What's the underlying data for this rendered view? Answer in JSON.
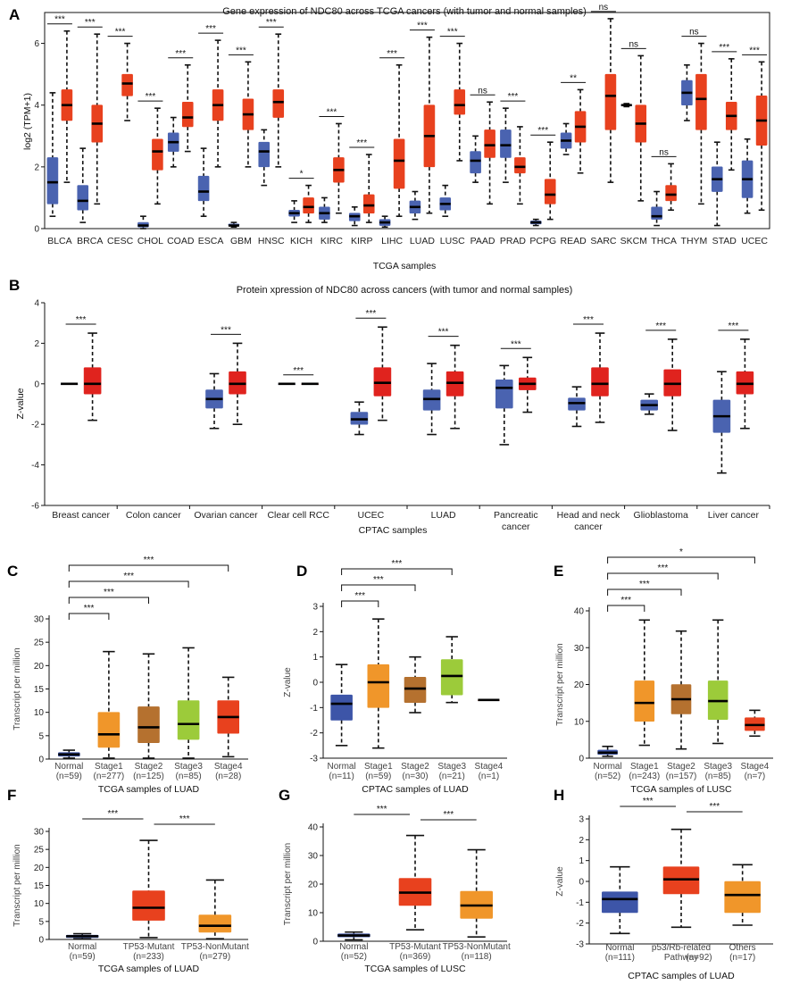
{
  "chart_data": [
    {
      "panel": "A",
      "type": "box",
      "title": "Gene expression of NDC80 across TCGA cancers (with tumor and normal samples)",
      "xlabel": "TCGA samples",
      "ylabel": "log2 (TPM+1)",
      "ylim": [
        0,
        7
      ],
      "yticks": [
        0,
        2,
        4,
        6
      ],
      "colors": {
        "normal": "#4a63b0",
        "tumor": "#e8411e"
      },
      "categories": [
        "BLCA",
        "BRCA",
        "CESC",
        "CHOL",
        "COAD",
        "ESCA",
        "GBM",
        "HNSC",
        "KICH",
        "KIRC",
        "KIRP",
        "LIHC",
        "LUAD",
        "LUSC",
        "PAAD",
        "PRAD",
        "PCPG",
        "READ",
        "SARC",
        "SKCM",
        "THCA",
        "THYM",
        "STAD",
        "UCEC"
      ],
      "significance": [
        "***",
        "***",
        "***",
        "***",
        "***",
        "***",
        "***",
        "***",
        "*",
        "***",
        "***",
        "***",
        "***",
        "***",
        "ns",
        "***",
        "***",
        "**",
        "ns",
        "ns",
        "ns",
        "ns",
        "***",
        "***"
      ],
      "normal": [
        [
          0.4,
          0.8,
          1.5,
          2.3,
          4.4
        ],
        [
          0.2,
          0.6,
          0.9,
          1.4,
          2.6
        ],
        null,
        [
          0.0,
          0.05,
          0.1,
          0.2,
          0.4
        ],
        [
          2.0,
          2.5,
          2.8,
          3.1,
          3.6
        ],
        [
          0.4,
          0.9,
          1.2,
          1.7,
          2.6
        ],
        [
          0.05,
          0.1,
          0.1,
          0.15,
          0.2
        ],
        [
          1.4,
          2.0,
          2.5,
          2.8,
          3.2
        ],
        [
          0.2,
          0.4,
          0.5,
          0.6,
          0.9
        ],
        [
          0.2,
          0.3,
          0.5,
          0.7,
          1.0
        ],
        [
          0.1,
          0.25,
          0.4,
          0.5,
          0.7
        ],
        [
          0.05,
          0.1,
          0.2,
          0.3,
          0.4
        ],
        [
          0.3,
          0.5,
          0.7,
          0.9,
          1.2
        ],
        [
          0.4,
          0.6,
          0.8,
          1.0,
          1.4
        ],
        [
          1.5,
          1.8,
          2.2,
          2.5,
          3.0
        ],
        [
          1.5,
          2.3,
          2.7,
          3.2,
          3.9
        ],
        [
          0.1,
          0.15,
          0.2,
          0.25,
          0.3
        ],
        [
          2.4,
          2.6,
          2.85,
          3.1,
          3.4
        ],
        null,
        [
          3.95,
          3.98,
          4.0,
          4.02,
          4.05
        ],
        [
          0.1,
          0.3,
          0.4,
          0.7,
          1.2
        ],
        [
          3.5,
          4.0,
          4.4,
          4.8,
          5.3
        ],
        [
          0.1,
          1.2,
          1.6,
          2.0,
          2.8
        ],
        [
          0.5,
          1.0,
          1.6,
          2.2,
          2.9
        ]
      ],
      "tumor": [
        [
          1.5,
          3.5,
          4.0,
          4.5,
          6.4
        ],
        [
          0.8,
          2.8,
          3.4,
          4.0,
          6.3
        ],
        [
          3.5,
          4.3,
          4.7,
          5.0,
          6.0
        ],
        [
          0.8,
          1.9,
          2.5,
          2.9,
          3.9
        ],
        [
          2.5,
          3.3,
          3.6,
          4.1,
          5.3
        ],
        [
          2.0,
          3.5,
          4.0,
          4.5,
          6.1
        ],
        [
          2.0,
          3.2,
          3.7,
          4.2,
          5.4
        ],
        [
          2.0,
          3.6,
          4.1,
          4.5,
          6.3
        ],
        [
          0.2,
          0.5,
          0.7,
          1.0,
          1.4
        ],
        [
          0.5,
          1.5,
          1.9,
          2.3,
          3.4
        ],
        [
          0.2,
          0.5,
          0.75,
          1.1,
          2.4
        ],
        [
          0.4,
          1.3,
          2.2,
          2.9,
          5.3
        ],
        [
          0.5,
          2.0,
          3.0,
          4.0,
          6.2
        ],
        [
          2.2,
          3.7,
          4.0,
          4.5,
          6.0
        ],
        [
          0.8,
          2.3,
          2.7,
          3.2,
          4.1
        ],
        [
          0.8,
          1.8,
          2.0,
          2.3,
          3.3
        ],
        [
          0.3,
          0.8,
          1.1,
          1.6,
          2.8
        ],
        [
          1.8,
          2.8,
          3.3,
          3.8,
          4.5
        ],
        [
          1.5,
          3.2,
          4.3,
          5.0,
          6.8
        ],
        [
          0.9,
          2.8,
          3.4,
          4.0,
          5.6
        ],
        [
          0.6,
          0.9,
          1.1,
          1.4,
          2.1
        ],
        [
          0.8,
          3.2,
          4.2,
          5.0,
          6.0
        ],
        [
          1.9,
          3.2,
          3.65,
          4.1,
          5.5
        ],
        [
          0.6,
          2.7,
          3.5,
          4.3,
          5.4
        ]
      ]
    },
    {
      "panel": "B",
      "type": "box",
      "title": "Protein xpression of NDC80 across cancers (with tumor and normal samples)",
      "xlabel": "CPTAC samples",
      "ylabel": "Z-value",
      "ylim": [
        -6,
        4
      ],
      "yticks": [
        -6,
        -4,
        -2,
        0,
        2,
        4
      ],
      "colors": {
        "normal": "#4a63b0",
        "tumor": "#e0231e"
      },
      "categories": [
        "Breast cancer",
        "Colon cancer",
        "Ovarian cancer",
        "Clear cell RCC",
        "UCEC",
        "LUAD",
        "Pancreatic cancer",
        "Head and neck cancer",
        "Glioblastoma",
        "Liver cancer"
      ],
      "category_lines": [
        [
          "Breast cancer"
        ],
        [
          "Colon cancer"
        ],
        [
          "Ovarian cancer"
        ],
        [
          "Clear cell RCC"
        ],
        [
          "UCEC"
        ],
        [
          "LUAD"
        ],
        [
          "Pancreatic",
          "cancer"
        ],
        [
          "Head and neck",
          "cancer"
        ],
        [
          "Glioblastoma"
        ],
        [
          "Liver cancer"
        ]
      ],
      "significance": [
        "***",
        "",
        "***",
        "***",
        "***",
        "***",
        "***",
        "***",
        "***",
        "***"
      ],
      "normal": [
        [
          0,
          0,
          0,
          0,
          0
        ],
        null,
        [
          -2.2,
          -1.2,
          -0.75,
          -0.3,
          0.5
        ],
        [
          0,
          0,
          0,
          0,
          0
        ],
        [
          -2.5,
          -2.0,
          -1.75,
          -1.4,
          -0.9
        ],
        [
          -2.5,
          -1.3,
          -0.75,
          -0.3,
          1.0
        ],
        [
          -3.0,
          -1.2,
          -0.2,
          0.2,
          0.9
        ],
        [
          -2.1,
          -1.3,
          -0.95,
          -0.7,
          -0.15
        ],
        [
          -1.5,
          -1.3,
          -1.05,
          -0.8,
          -0.5
        ],
        [
          -4.4,
          -2.4,
          -1.6,
          -0.8,
          0.6
        ]
      ],
      "tumor": [
        [
          -1.8,
          -0.5,
          0,
          0.8,
          2.5
        ],
        null,
        [
          -2.0,
          -0.5,
          0,
          0.6,
          2.0
        ],
        [
          0,
          0,
          0,
          0,
          0
        ],
        [
          -1.8,
          -0.6,
          0.05,
          0.8,
          2.8
        ],
        [
          -2.2,
          -0.6,
          0.05,
          0.6,
          1.9
        ],
        [
          -1.4,
          -0.3,
          0,
          0.3,
          1.3
        ],
        [
          -1.9,
          -0.6,
          0,
          0.8,
          2.5
        ],
        [
          -2.3,
          -0.6,
          0,
          0.7,
          2.2
        ],
        [
          -2.2,
          -0.5,
          0,
          0.6,
          2.2
        ]
      ]
    },
    {
      "panel": "C",
      "type": "box",
      "xlabel": "TCGA samples of LUAD",
      "ylabel": "Transcript per million",
      "ylim": [
        0,
        30
      ],
      "yticks": [
        0,
        5,
        10,
        15,
        20,
        25,
        30
      ],
      "categories": [
        "Normal",
        "Stage1",
        "Stage2",
        "Stage3",
        "Stage4"
      ],
      "counts": [
        "(n=59)",
        "(n=277)",
        "(n=125)",
        "(n=85)",
        "(n=28)"
      ],
      "colors": [
        "#3d55a8",
        "#f0962a",
        "#b5712f",
        "#9ccb3a",
        "#e8411e"
      ],
      "boxes": [
        [
          0.2,
          0.6,
          1.0,
          1.4,
          1.9
        ],
        [
          0.2,
          2.5,
          5.3,
          10.0,
          23.0
        ],
        [
          0.2,
          3.5,
          6.8,
          11.2,
          22.5
        ],
        [
          0.2,
          4.2,
          7.5,
          12.5,
          23.8
        ],
        [
          0.5,
          5.5,
          9.0,
          12.5,
          17.5
        ]
      ],
      "brackets": [
        {
          "to": 1,
          "label": "***"
        },
        {
          "to": 2,
          "label": "***"
        },
        {
          "to": 3,
          "label": "***"
        },
        {
          "to": 4,
          "label": "***"
        }
      ]
    },
    {
      "panel": "D",
      "type": "box",
      "xlabel": "CPTAC samples of LUAD",
      "ylabel": "Z-value",
      "ylim": [
        -3,
        3
      ],
      "yticks": [
        -3,
        -2,
        -1,
        0,
        1,
        2,
        3
      ],
      "categories": [
        "Normal",
        "Stage1",
        "Stage2",
        "Stage3",
        "Stage4"
      ],
      "counts": [
        "(n=11)",
        "(n=59)",
        "(n=30)",
        "(n=21)",
        "(n=1)"
      ],
      "colors": [
        "#3d55a8",
        "#f0962a",
        "#b5712f",
        "#9ccb3a",
        "#e8411e"
      ],
      "boxes": [
        [
          -2.5,
          -1.5,
          -0.85,
          -0.5,
          0.7
        ],
        [
          -2.6,
          -1.0,
          0.0,
          0.7,
          2.5
        ],
        [
          -1.2,
          -0.8,
          -0.25,
          0.2,
          1.0
        ],
        [
          -0.8,
          -0.5,
          0.25,
          0.9,
          1.8
        ],
        [
          -0.7,
          -0.7,
          -0.7,
          -0.7,
          -0.7
        ]
      ],
      "brackets": [
        {
          "to": 1,
          "label": "***"
        },
        {
          "to": 2,
          "label": "***"
        },
        {
          "to": 3,
          "label": "***"
        }
      ]
    },
    {
      "panel": "E",
      "type": "box",
      "xlabel": "TCGA samples of LUSC",
      "ylabel": "Transcript per million",
      "ylim": [
        0,
        40
      ],
      "yticks": [
        0,
        10,
        20,
        30,
        40
      ],
      "categories": [
        "Normal",
        "Stage1",
        "Stage2",
        "Stage3",
        "Stage4"
      ],
      "counts": [
        "(n=52)",
        "(n=243)",
        "(n=157)",
        "(n=85)",
        "(n=7)"
      ],
      "colors": [
        "#3d55a8",
        "#f0962a",
        "#b5712f",
        "#9ccb3a",
        "#e8411e"
      ],
      "boxes": [
        [
          0.5,
          1.0,
          1.5,
          2.2,
          3.2
        ],
        [
          3.5,
          10.0,
          15.0,
          21.0,
          37.5
        ],
        [
          2.5,
          12.0,
          16.0,
          20.0,
          34.5
        ],
        [
          4.0,
          10.5,
          15.5,
          21.0,
          37.5
        ],
        [
          6.0,
          7.5,
          9.0,
          11.0,
          13.0
        ]
      ],
      "brackets": [
        {
          "to": 1,
          "label": "***"
        },
        {
          "to": 2,
          "label": "***"
        },
        {
          "to": 3,
          "label": "***"
        },
        {
          "to": 4,
          "label": "*"
        }
      ]
    },
    {
      "panel": "F",
      "type": "box",
      "xlabel": "TCGA samples of LUAD",
      "ylabel": "Transcript per million",
      "ylim": [
        0,
        30
      ],
      "yticks": [
        0,
        5,
        10,
        15,
        20,
        25,
        30
      ],
      "categories": [
        "Normal",
        "TP53-Mutant",
        "TP53-NonMutant"
      ],
      "counts": [
        "(n=59)",
        "(n=233)",
        "(n=279)"
      ],
      "colors": [
        "#3d55a8",
        "#e8411e",
        "#f0962a"
      ],
      "boxes": [
        [
          0.2,
          0.5,
          0.9,
          1.2,
          1.6
        ],
        [
          0.5,
          5.3,
          8.8,
          13.5,
          27.5
        ],
        [
          0.2,
          2.0,
          3.8,
          6.8,
          16.5
        ]
      ],
      "brackets": [
        {
          "from": 0,
          "to": 1,
          "label": "***"
        },
        {
          "from": 1,
          "to": 2,
          "label": "***"
        }
      ]
    },
    {
      "panel": "G",
      "type": "box",
      "xlabel": "TCGA samples of LUSC",
      "ylabel": "Transcript per million",
      "ylim": [
        0,
        40
      ],
      "yticks": [
        0,
        10,
        20,
        30,
        40
      ],
      "categories": [
        "Normal",
        "TP53-Mutant",
        "TP53-NonMutant"
      ],
      "counts": [
        "(n=52)",
        "(n=369)",
        "(n=118)"
      ],
      "colors": [
        "#3d55a8",
        "#e8411e",
        "#f0962a"
      ],
      "boxes": [
        [
          0.5,
          1.5,
          2.0,
          2.6,
          3.2
        ],
        [
          4.0,
          12.5,
          17.0,
          22.0,
          37.0
        ],
        [
          1.5,
          8.0,
          12.5,
          17.5,
          32.0
        ]
      ],
      "brackets": [
        {
          "from": 0,
          "to": 1,
          "label": "***"
        },
        {
          "from": 1,
          "to": 2,
          "label": "***"
        }
      ]
    },
    {
      "panel": "H",
      "type": "box",
      "xlabel": "CPTAC samples of LUAD",
      "ylabel": "Z-value",
      "ylim": [
        -3,
        3
      ],
      "yticks": [
        -3,
        -2,
        -1,
        0,
        1,
        2,
        3
      ],
      "categories": [
        "Normal",
        "p53/Rb-related Pathway",
        "Others"
      ],
      "category_lines": [
        [
          "Normal"
        ],
        [
          "p53/Rb-related",
          "Pathway"
        ],
        [
          "Others"
        ]
      ],
      "counts": [
        "(n=111)",
        "(n=92)",
        "(n=17)"
      ],
      "colors": [
        "#3d55a8",
        "#e8411e",
        "#f0962a"
      ],
      "boxes": [
        [
          -2.5,
          -1.5,
          -0.85,
          -0.5,
          0.7
        ],
        [
          -2.2,
          -0.6,
          0.1,
          0.7,
          2.5
        ],
        [
          -2.1,
          -1.5,
          -0.65,
          0.0,
          0.8
        ]
      ],
      "brackets": [
        {
          "from": 0,
          "to": 1,
          "label": "***"
        },
        {
          "from": 1,
          "to": 2,
          "label": "***"
        }
      ]
    }
  ]
}
